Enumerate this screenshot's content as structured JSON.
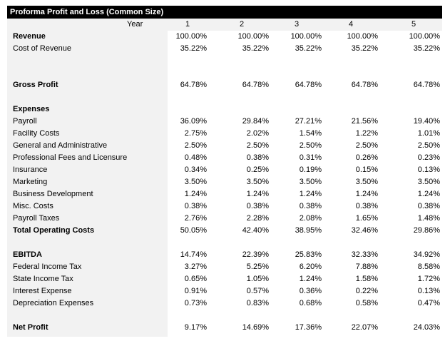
{
  "title": "Proforma Profit and Loss (Common Size)",
  "year_label": "Year",
  "years": [
    "1",
    "2",
    "3",
    "4",
    "5"
  ],
  "rows": [
    {
      "label": "Revenue",
      "bold": true,
      "values": [
        "100.00%",
        "100.00%",
        "100.00%",
        "100.00%",
        "100.00%"
      ]
    },
    {
      "label": "Cost of Revenue",
      "bold": false,
      "values": [
        "35.22%",
        "35.22%",
        "35.22%",
        "35.22%",
        "35.22%"
      ]
    },
    {
      "label": "",
      "bold": false,
      "values": []
    },
    {
      "label": "",
      "bold": false,
      "values": []
    },
    {
      "label": "Gross Profit",
      "bold": true,
      "values": [
        "64.78%",
        "64.78%",
        "64.78%",
        "64.78%",
        "64.78%"
      ]
    },
    {
      "label": "",
      "bold": false,
      "values": []
    },
    {
      "label": "Expenses",
      "bold": true,
      "values": []
    },
    {
      "label": "Payroll",
      "bold": false,
      "values": [
        "36.09%",
        "29.84%",
        "27.21%",
        "21.56%",
        "19.40%"
      ]
    },
    {
      "label": "Facility Costs",
      "bold": false,
      "values": [
        "2.75%",
        "2.02%",
        "1.54%",
        "1.22%",
        "1.01%"
      ]
    },
    {
      "label": "General and Administrative",
      "bold": false,
      "values": [
        "2.50%",
        "2.50%",
        "2.50%",
        "2.50%",
        "2.50%"
      ]
    },
    {
      "label": "Professional Fees and Licensure",
      "bold": false,
      "values": [
        "0.48%",
        "0.38%",
        "0.31%",
        "0.26%",
        "0.23%"
      ]
    },
    {
      "label": "Insurance",
      "bold": false,
      "values": [
        "0.34%",
        "0.25%",
        "0.19%",
        "0.15%",
        "0.13%"
      ]
    },
    {
      "label": "Marketing",
      "bold": false,
      "values": [
        "3.50%",
        "3.50%",
        "3.50%",
        "3.50%",
        "3.50%"
      ]
    },
    {
      "label": "Business Development",
      "bold": false,
      "values": [
        "1.24%",
        "1.24%",
        "1.24%",
        "1.24%",
        "1.24%"
      ]
    },
    {
      "label": "Misc. Costs",
      "bold": false,
      "values": [
        "0.38%",
        "0.38%",
        "0.38%",
        "0.38%",
        "0.38%"
      ]
    },
    {
      "label": "Payroll Taxes",
      "bold": false,
      "values": [
        "2.76%",
        "2.28%",
        "2.08%",
        "1.65%",
        "1.48%"
      ]
    },
    {
      "label": "Total Operating Costs",
      "bold": true,
      "values": [
        "50.05%",
        "42.40%",
        "38.95%",
        "32.46%",
        "29.86%"
      ]
    },
    {
      "label": "",
      "bold": false,
      "values": []
    },
    {
      "label": "EBITDA",
      "bold": true,
      "values": [
        "14.74%",
        "22.39%",
        "25.83%",
        "32.33%",
        "34.92%"
      ]
    },
    {
      "label": "Federal Income Tax",
      "bold": false,
      "values": [
        "3.27%",
        "5.25%",
        "6.20%",
        "7.88%",
        "8.58%"
      ]
    },
    {
      "label": "State Income Tax",
      "bold": false,
      "values": [
        "0.65%",
        "1.05%",
        "1.24%",
        "1.58%",
        "1.72%"
      ]
    },
    {
      "label": "Interest Expense",
      "bold": false,
      "values": [
        "0.91%",
        "0.57%",
        "0.36%",
        "0.22%",
        "0.13%"
      ]
    },
    {
      "label": "Depreciation Expenses",
      "bold": false,
      "values": [
        "0.73%",
        "0.83%",
        "0.68%",
        "0.58%",
        "0.47%"
      ]
    },
    {
      "label": "",
      "bold": false,
      "values": []
    },
    {
      "label": "Net Profit",
      "bold": true,
      "values": [
        "9.17%",
        "14.69%",
        "17.36%",
        "22.07%",
        "24.03%"
      ]
    }
  ]
}
